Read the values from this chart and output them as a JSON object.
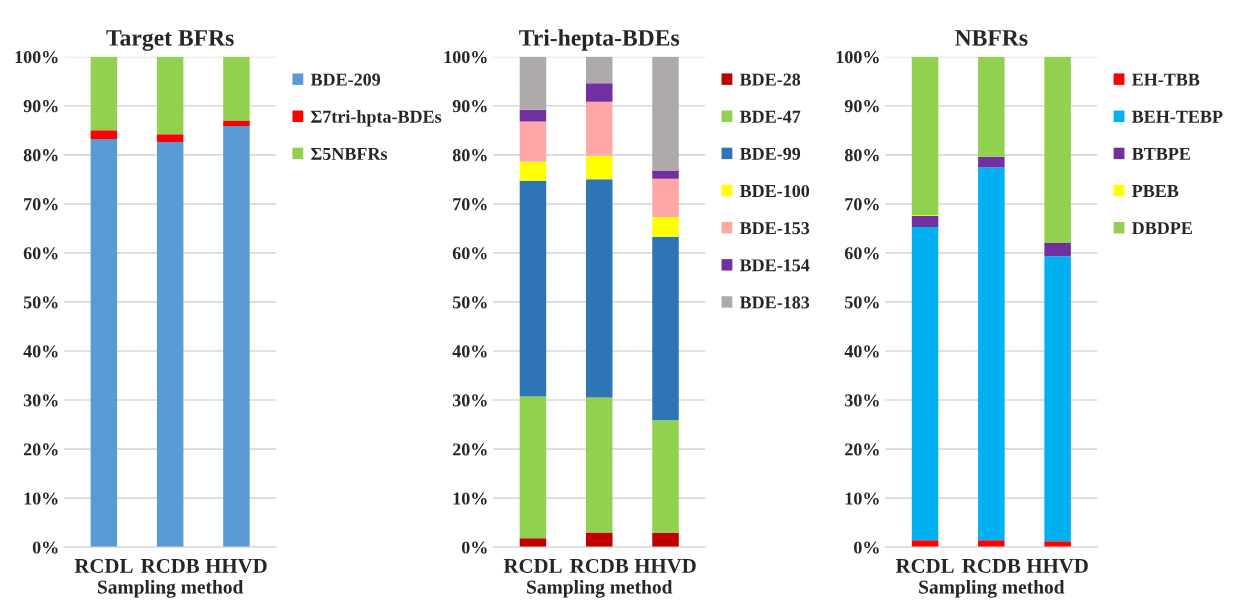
{
  "chart_data": [
    {
      "type": "bar",
      "title": "Target BFRs",
      "xlabel": "Sampling method",
      "categories": [
        "RCDL",
        "RCDB",
        "HHVD"
      ],
      "stacked": true,
      "ylim": [
        0,
        100
      ],
      "yticks": [
        {
          "value": 0,
          "label": "0%"
        },
        {
          "value": 10,
          "label": "10%"
        },
        {
          "value": 20,
          "label": "20%"
        },
        {
          "value": 30,
          "label": "30%"
        },
        {
          "value": 40,
          "label": "40%"
        },
        {
          "value": 50,
          "label": "50%"
        },
        {
          "value": 60,
          "label": "60%"
        },
        {
          "value": 70,
          "label": "70%"
        },
        {
          "value": 80,
          "label": "80%"
        },
        {
          "value": 90,
          "label": "90%"
        },
        {
          "value": 100,
          "label": "100%"
        }
      ],
      "grid": "y",
      "legend": "right",
      "series": [
        {
          "name": "BDE-209",
          "color": "#5b9bd5",
          "values": [
            83.2,
            82.6,
            85.9
          ]
        },
        {
          "name": "Σ7tri-hpta-BDEs",
          "color": "#ff0000",
          "values": [
            1.8,
            1.6,
            1.1
          ]
        },
        {
          "name": "Σ5NBFRs",
          "color": "#92d050",
          "values": [
            15.0,
            15.8,
            13.0
          ]
        }
      ]
    },
    {
      "type": "bar",
      "title": "Tri-hepta-BDEs",
      "xlabel": "Sampling method",
      "categories": [
        "RCDL",
        "RCDB",
        "HHVD"
      ],
      "stacked": true,
      "ylim": [
        0,
        100
      ],
      "yticks": [
        {
          "value": 0,
          "label": "0%"
        },
        {
          "value": 10,
          "label": "10%"
        },
        {
          "value": 20,
          "label": "20%"
        },
        {
          "value": 30,
          "label": "30%"
        },
        {
          "value": 40,
          "label": "40%"
        },
        {
          "value": 50,
          "label": "50%"
        },
        {
          "value": 60,
          "label": "60%"
        },
        {
          "value": 70,
          "label": "70%"
        },
        {
          "value": 80,
          "label": "80%"
        },
        {
          "value": 90,
          "label": "90%"
        },
        {
          "value": 100,
          "label": "100%"
        }
      ],
      "grid": "y",
      "legend": "right",
      "series": [
        {
          "name": "BDE-28",
          "color": "#c00000",
          "values": [
            1.8,
            3.0,
            2.9
          ]
        },
        {
          "name": "BDE-47",
          "color": "#92d050",
          "values": [
            28.9,
            27.5,
            23.0
          ]
        },
        {
          "name": "BDE-99",
          "color": "#2e75b6",
          "values": [
            44.0,
            44.5,
            37.4
          ]
        },
        {
          "name": "BDE-100",
          "color": "#ffff00",
          "values": [
            3.9,
            4.8,
            4.0
          ]
        },
        {
          "name": "BDE-153",
          "color": "#ffa7a7",
          "values": [
            8.2,
            11.0,
            7.8
          ]
        },
        {
          "name": "BDE-154",
          "color": "#7030a0",
          "values": [
            2.4,
            3.8,
            1.7
          ]
        },
        {
          "name": "BDE-183",
          "color": "#aeaaaa",
          "values": [
            10.8,
            5.4,
            23.2
          ]
        }
      ]
    },
    {
      "type": "bar",
      "title": "NBFRs",
      "xlabel": "Sampling method",
      "categories": [
        "RCDL",
        "RCDB",
        "HHVD"
      ],
      "stacked": true,
      "ylim": [
        0,
        100
      ],
      "yticks": [
        {
          "value": 0,
          "label": "0%"
        },
        {
          "value": 10,
          "label": "10%"
        },
        {
          "value": 20,
          "label": "20%"
        },
        {
          "value": 30,
          "label": "30%"
        },
        {
          "value": 40,
          "label": "40%"
        },
        {
          "value": 50,
          "label": "50%"
        },
        {
          "value": 60,
          "label": "60%"
        },
        {
          "value": 70,
          "label": "70%"
        },
        {
          "value": 80,
          "label": "80%"
        },
        {
          "value": 90,
          "label": "90%"
        },
        {
          "value": 100,
          "label": "100%"
        }
      ],
      "grid": "y",
      "legend": "right",
      "series": [
        {
          "name": "EH-TBB",
          "color": "#ff0000",
          "values": [
            1.4,
            1.4,
            1.2
          ]
        },
        {
          "name": "BEH-TEBP",
          "color": "#00b0f0",
          "values": [
            63.9,
            76.0,
            58.1
          ]
        },
        {
          "name": "BTBPE",
          "color": "#7030a0",
          "values": [
            2.2,
            2.2,
            2.7
          ]
        },
        {
          "name": "PBEB",
          "color": "#ffff00",
          "values": [
            0.2,
            0.0,
            0.0
          ]
        },
        {
          "name": "DBDPE",
          "color": "#92d050",
          "values": [
            32.3,
            20.4,
            38.0
          ]
        }
      ]
    }
  ]
}
